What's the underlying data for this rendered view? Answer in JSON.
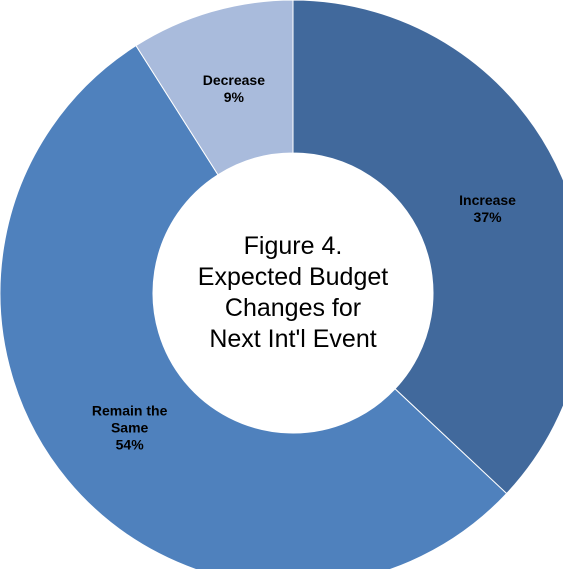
{
  "chart_data": {
    "type": "donut",
    "title": [
      "Figure 4.",
      "Expected Budget",
      "Changes for",
      "Next Int'l Event"
    ],
    "categories": [
      "Increase",
      "Remain the Same",
      "Decrease"
    ],
    "values": [
      37,
      54,
      9
    ],
    "value_labels": [
      "37%",
      "54%",
      "9%"
    ],
    "colors": [
      "#41699c",
      "#4f81bd",
      "#a9bbdc"
    ]
  }
}
